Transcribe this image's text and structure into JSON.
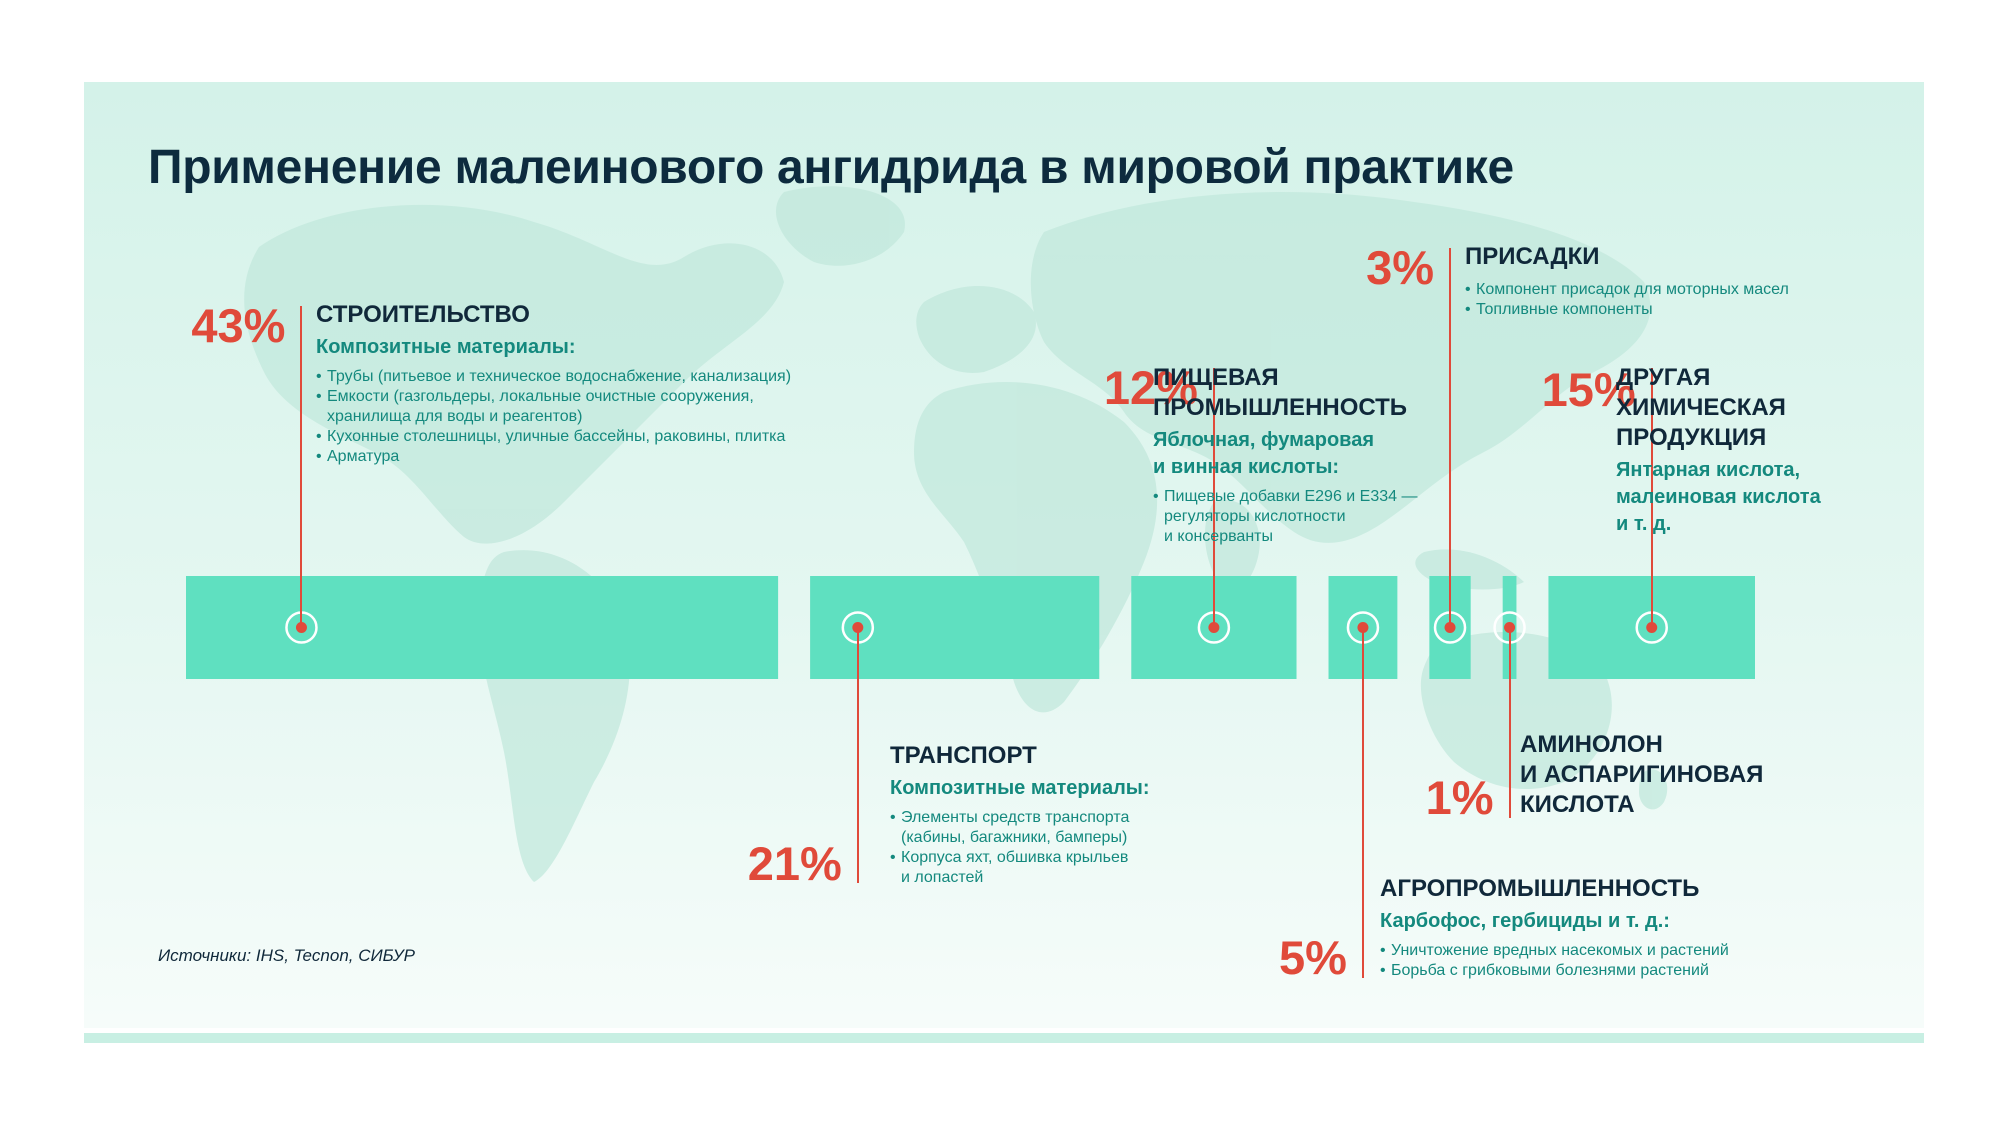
{
  "title": "Применение малеинового ангидрида в мировой практике",
  "sources": "Источники: IHS, Tecnon, СИБУР",
  "colors": {
    "accent": "#e04a3a",
    "bar": "#5fe0c0",
    "teal_text": "#14897e",
    "dark_text": "#10283a"
  },
  "chart_data": {
    "type": "bar",
    "orientation": "horizontal-stacked",
    "title": "Применение малеинового ангидрида в мировой практике",
    "unit": "%",
    "total": 100,
    "segments": [
      {
        "name": "Строительство",
        "value": 43
      },
      {
        "name": "Транспорт",
        "value": 21
      },
      {
        "name": "Пищевая промышленность",
        "value": 12
      },
      {
        "name": "Агропромышленность",
        "value": 5
      },
      {
        "name": "Присадки",
        "value": 3
      },
      {
        "name": "Аминолон и аспаригиновая кислота",
        "value": 1
      },
      {
        "name": "Другая химическая продукция",
        "value": 15
      }
    ]
  },
  "blocks": [
    {
      "id": "construction",
      "percent": "43%",
      "title": [
        "СТРОИТЕЛЬСТВО"
      ],
      "subtitle": [
        "Композитные материалы:"
      ],
      "bullets": [
        [
          "Трубы (питьевое и техническое водоснабжение, канализация)"
        ],
        [
          "Емкости (газгольдеры, локальные очистные сооружения,",
          "хранилища для воды и реагентов)"
        ],
        [
          "Кухонные столешницы, уличные бассейны, раковины, плитка"
        ],
        [
          "Арматура"
        ]
      ]
    },
    {
      "id": "transport",
      "percent": "21%",
      "title": [
        "ТРАНСПОРТ"
      ],
      "subtitle": [
        "Композитные материалы:"
      ],
      "bullets": [
        [
          "Элементы средств транспорта",
          "(кабины, багажники, бамперы)"
        ],
        [
          "Корпуса яхт, обшивка крыльев",
          "и лопастей"
        ]
      ]
    },
    {
      "id": "food",
      "percent": "12%",
      "title": [
        "ПИЩЕВАЯ",
        "ПРОМЫШЛЕННОСТЬ"
      ],
      "subtitle": [
        "Яблочная, фумаровая",
        "и винная кислоты:"
      ],
      "bullets": [
        [
          "Пищевые добавки Е296 и Е334 —",
          "регуляторы кислотности",
          "и консерванты"
        ]
      ]
    },
    {
      "id": "agro",
      "percent": "5%",
      "title": [
        "АГРОПРОМЫШЛЕННОСТЬ"
      ],
      "subtitle": [
        "Карбофос, гербициды и т. д.:"
      ],
      "bullets": [
        [
          "Уничтожение вредных насекомых и растений"
        ],
        [
          "Борьба с грибковыми болезнями растений"
        ]
      ]
    },
    {
      "id": "additives",
      "percent": "3%",
      "title": [
        "ПРИСАДКИ"
      ],
      "subtitle": [],
      "bullets": [
        [
          "Компонент присадок для моторных масел"
        ],
        [
          "Топливные компоненты"
        ]
      ]
    },
    {
      "id": "aminolon",
      "percent": "1%",
      "title": [
        "АМИНОЛОН",
        "И АСПАРИГИНОВАЯ",
        "КИСЛОТА"
      ],
      "subtitle": [],
      "bullets": []
    },
    {
      "id": "other",
      "percent": "15%",
      "title": [
        "ДРУГАЯ",
        "ХИМИЧЕСКАЯ",
        "ПРОДУКЦИЯ"
      ],
      "subtitle": [
        "Янтарная кислота,",
        "малеиновая кислота",
        "и т. д."
      ],
      "bullets": []
    }
  ]
}
